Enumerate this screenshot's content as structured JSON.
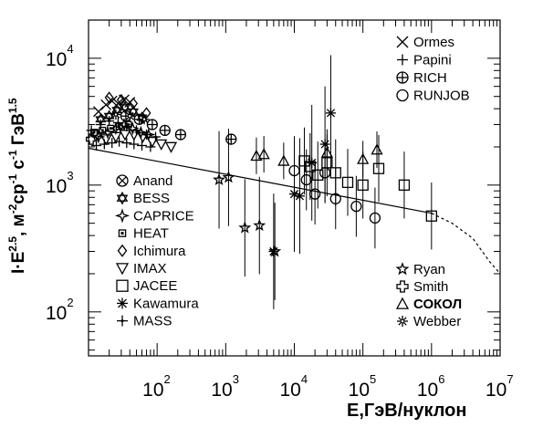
{
  "chart_data": {
    "type": "scatter",
    "xlabel": "E,ГэВ/нуклон",
    "ylabel": {
      "prefix": "I·E",
      "prefix_sup": "2.5",
      "unit_part1": ", м",
      "unit_sup1": "-2",
      "unit_part2": "ср",
      "unit_sup2": "-1",
      "unit_part3": " с",
      "unit_sup3": "-1",
      "unit_part4": " ГэВ",
      "unit_sup4": "1.5"
    },
    "x_log": true,
    "y_log": true,
    "xlim": [
      10,
      10000000
    ],
    "ylim": [
      45,
      20000
    ],
    "x_ticks": [
      {
        "base": "10",
        "exp": "2",
        "value": 100
      },
      {
        "base": "10",
        "exp": "3",
        "value": 1000
      },
      {
        "base": "10",
        "exp": "4",
        "value": 10000
      },
      {
        "base": "10",
        "exp": "5",
        "value": 100000
      },
      {
        "base": "10",
        "exp": "6",
        "value": 1000000
      },
      {
        "base": "10",
        "exp": "7",
        "value": 10000000
      }
    ],
    "y_ticks": [
      {
        "base": "10",
        "exp": "2",
        "value": 100
      },
      {
        "base": "10",
        "exp": "3",
        "value": 1000
      },
      {
        "base": "10",
        "exp": "4",
        "value": 10000
      }
    ],
    "grid": false,
    "legend_left": [
      {
        "label": "Anand",
        "marker": "circle-x"
      },
      {
        "label": "BESS",
        "marker": "star-of-david"
      },
      {
        "label": "CAPRICE",
        "marker": "four-point-star"
      },
      {
        "label": "HEAT",
        "marker": "small-square"
      },
      {
        "label": "Ichimura",
        "marker": "diamond"
      },
      {
        "label": "IMAX",
        "marker": "triangle-down"
      },
      {
        "label": "JACEE",
        "marker": "square"
      },
      {
        "label": "Kawamura",
        "marker": "asterisk"
      },
      {
        "label": "MASS",
        "marker": "cross-thin"
      }
    ],
    "legend_top_right": [
      {
        "label": "Ormes",
        "marker": "x"
      },
      {
        "label": "Papini",
        "marker": "plus"
      },
      {
        "label": "RICH",
        "marker": "circle-plus"
      },
      {
        "label": "RUNJOB",
        "marker": "circle"
      }
    ],
    "legend_bottom_right": [
      {
        "label": "Ryan",
        "marker": "star"
      },
      {
        "label": "Smith",
        "marker": "open-cross"
      },
      {
        "label": "СОКОЛ",
        "marker": "triangle",
        "bold": true
      },
      {
        "label": "Webber",
        "marker": "snowflake"
      }
    ],
    "fit_line": {
      "solid": [
        [
          10,
          1950
        ],
        [
          1000000,
          600
        ]
      ],
      "dashed": [
        [
          1000000,
          600
        ],
        [
          2000000,
          500
        ],
        [
          4000000,
          380
        ],
        [
          7000000,
          250
        ],
        [
          10000000,
          200
        ]
      ]
    },
    "series": [
      {
        "name": "Ormes",
        "marker": "x",
        "points": [
          [
            14,
            3800
          ],
          [
            18,
            4300
          ],
          [
            22,
            4600
          ],
          [
            27,
            4400
          ],
          [
            33,
            4700
          ],
          [
            40,
            4500
          ]
        ]
      },
      {
        "name": "Papini",
        "marker": "plus",
        "points": [
          [
            13,
            2050
          ],
          [
            17,
            2100
          ],
          [
            22,
            2150
          ],
          [
            28,
            2200
          ],
          [
            36,
            2150
          ],
          [
            46,
            2100
          ],
          [
            60,
            2050
          ],
          [
            80,
            2000
          ]
        ]
      },
      {
        "name": "RICH",
        "marker": "circle-plus",
        "points": [
          [
            35,
            3500
          ],
          [
            55,
            3300
          ],
          [
            85,
            3000
          ],
          [
            130,
            2700
          ],
          [
            220,
            2500
          ],
          [
            1200,
            2300
          ]
        ]
      },
      {
        "name": "BESS",
        "marker": "star-of-david",
        "points": [
          [
            15,
            3300
          ],
          [
            20,
            3500
          ],
          [
            26,
            3900
          ],
          [
            34,
            4100
          ],
          [
            45,
            3800
          ],
          [
            60,
            3400
          ]
        ]
      },
      {
        "name": "CAPRICE",
        "marker": "four-point-star",
        "points": [
          [
            14,
            2400
          ],
          [
            19,
            2600
          ],
          [
            25,
            2800
          ],
          [
            33,
            3000
          ],
          [
            44,
            2800
          ],
          [
            58,
            2600
          ],
          [
            75,
            2500
          ]
        ]
      },
      {
        "name": "HEAT",
        "marker": "small-square",
        "points": [
          [
            12,
            2600
          ],
          [
            16,
            2700
          ],
          [
            21,
            2800
          ],
          [
            28,
            2900
          ],
          [
            38,
            3000
          ]
        ]
      },
      {
        "name": "Ichimura",
        "marker": "diamond",
        "points": [
          [
            20,
            4900
          ],
          [
            30,
            4700
          ],
          [
            45,
            4400
          ],
          [
            70,
            3700
          ]
        ]
      },
      {
        "name": "IMAX",
        "marker": "triangle-down",
        "points": [
          [
            18,
            2300
          ],
          [
            25,
            2400
          ],
          [
            34,
            2500
          ],
          [
            46,
            2500
          ],
          [
            62,
            2400
          ],
          [
            85,
            2200
          ],
          [
            115,
            2100
          ],
          [
            160,
            2000
          ]
        ]
      },
      {
        "name": "MASS",
        "marker": "cross-thin",
        "points": [
          [
            11,
            2700
          ],
          [
            15,
            3000
          ],
          [
            20,
            3200
          ],
          [
            27,
            3100
          ],
          [
            36,
            2900
          ],
          [
            50,
            2700
          ],
          [
            70,
            2500
          ],
          [
            95,
            2400
          ]
        ]
      },
      {
        "name": "JACEE",
        "marker": "square",
        "points": [
          [
            14000,
            1550
          ],
          [
            17000,
            1400
          ],
          [
            22000,
            1200
          ],
          [
            30000,
            1500
          ],
          [
            40000,
            1250
          ],
          [
            60000,
            1050
          ],
          [
            100000,
            1000
          ],
          [
            170000,
            1350
          ],
          [
            400000,
            1000
          ],
          [
            1000000,
            570
          ]
        ]
      },
      {
        "name": "Kawamura",
        "marker": "asterisk",
        "points": [
          [
            5000,
            300
          ],
          [
            10000,
            850
          ],
          [
            12000,
            820
          ],
          [
            18000,
            1500
          ],
          [
            28000,
            2100
          ],
          [
            34000,
            3700
          ]
        ]
      },
      {
        "name": "RUNJOB",
        "marker": "circle",
        "points": [
          [
            10000,
            1300
          ],
          [
            15000,
            1100
          ],
          [
            20000,
            850
          ],
          [
            28000,
            1250
          ],
          [
            40000,
            780
          ],
          [
            80000,
            680
          ],
          [
            150000,
            550
          ]
        ]
      },
      {
        "name": "Ryan",
        "marker": "star",
        "points": [
          [
            800,
            1100
          ],
          [
            1100,
            1150
          ],
          [
            1900,
            460
          ],
          [
            3100,
            480
          ],
          [
            5200,
            300
          ]
        ]
      },
      {
        "name": "Smith",
        "marker": "open-cross",
        "points": [
          [
            11,
            2300
          ],
          [
            13,
            2500
          ]
        ]
      },
      {
        "name": "СОКОЛ",
        "marker": "triangle",
        "points": [
          [
            2800,
            1700
          ],
          [
            3600,
            1750
          ],
          [
            7000,
            1550
          ],
          [
            30000,
            1800
          ],
          [
            100000,
            1600
          ],
          [
            160000,
            1900
          ]
        ]
      },
      {
        "name": "Webber",
        "marker": "snowflake",
        "points": [
          [
            25,
            3600
          ],
          [
            40,
            3500
          ],
          [
            65,
            3300
          ]
        ]
      }
    ]
  }
}
